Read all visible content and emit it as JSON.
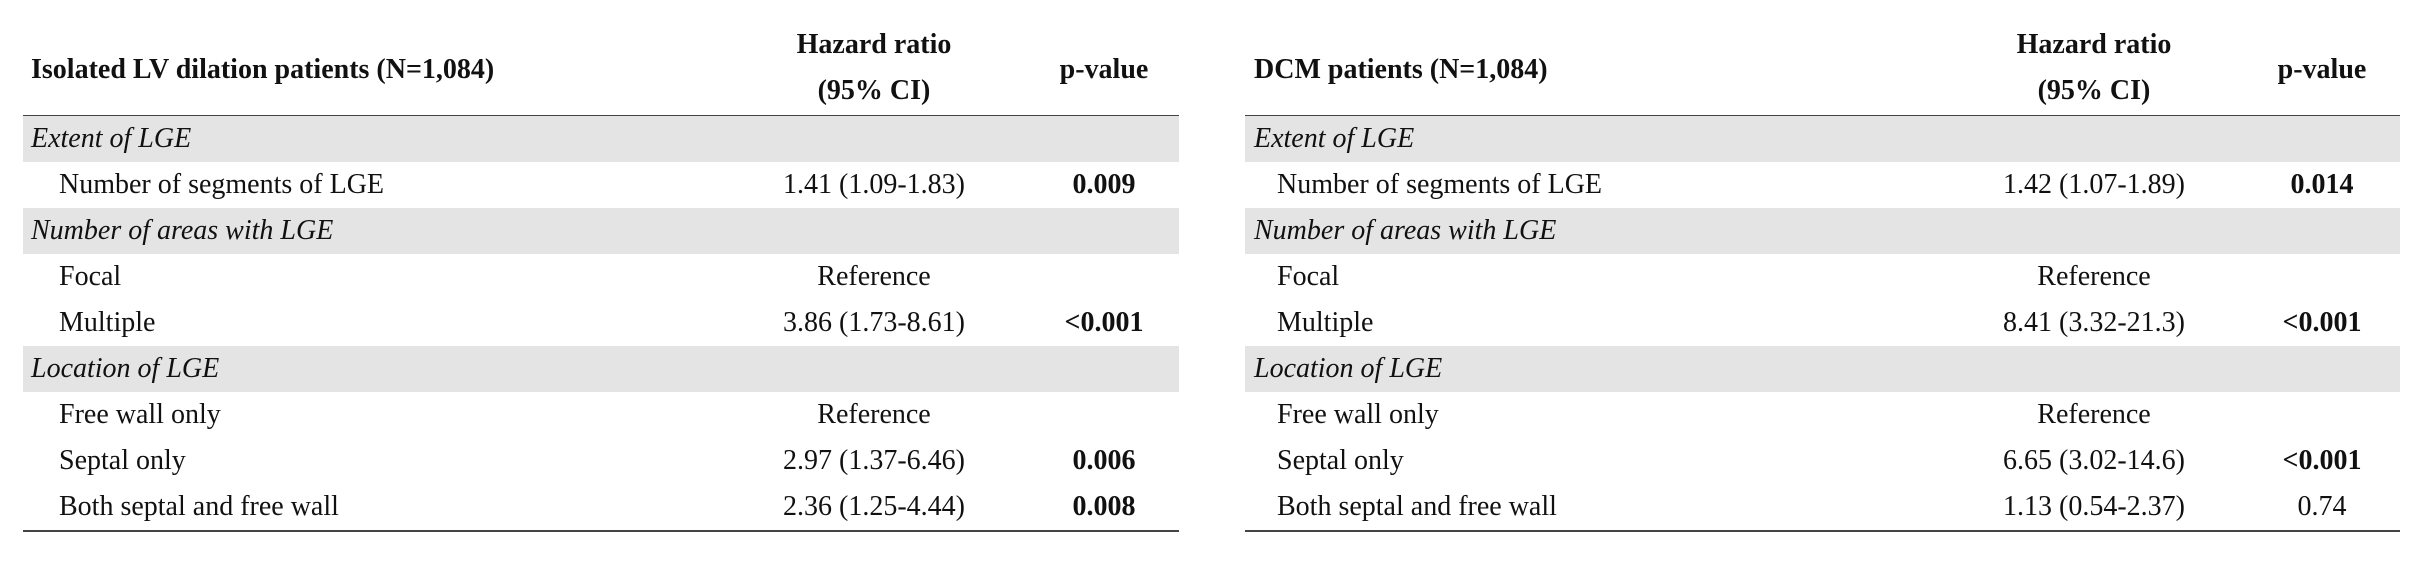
{
  "tables": [
    {
      "title": "Isolated LV dilation patients (N=1,084)",
      "hr_header": [
        "Hazard ratio",
        "(95% CI)"
      ],
      "p_header": "p-value",
      "groups": [
        {
          "heading": "Extent of LGE",
          "rows": [
            {
              "label": "Number of segments of LGE",
              "hr": "1.41 (1.09-1.83)",
              "p": "0.009",
              "p_bold": true
            }
          ]
        },
        {
          "heading": "Number of areas with LGE",
          "rows": [
            {
              "label": "Focal",
              "hr": "Reference"
            },
            {
              "label": "Multiple",
              "hr": "3.86 (1.73-8.61)",
              "p": "<0.001",
              "p_bold": true
            }
          ]
        },
        {
          "heading": "Location of LGE",
          "rows": [
            {
              "label": "Free wall only",
              "hr": "Reference"
            },
            {
              "label": "Septal only",
              "hr": "2.97 (1.37-6.46)",
              "p": "0.006",
              "p_bold": true
            },
            {
              "label": "Both septal and free wall",
              "hr": "2.36 (1.25-4.44)",
              "p": "0.008",
              "p_bold": true
            }
          ]
        }
      ]
    },
    {
      "title": "DCM patients (N=1,084)",
      "hr_header": [
        "Hazard ratio",
        "(95% CI)"
      ],
      "p_header": "p-value",
      "groups": [
        {
          "heading": "Extent of LGE",
          "rows": [
            {
              "label": "Number of segments of LGE",
              "hr": "1.42 (1.07-1.89)",
              "p": "0.014",
              "p_bold": true
            }
          ]
        },
        {
          "heading": "Number of areas with LGE",
          "rows": [
            {
              "label": "Focal",
              "hr": "Reference"
            },
            {
              "label": "Multiple",
              "hr": "8.41 (3.32-21.3)",
              "p": "<0.001",
              "p_bold": true
            }
          ]
        },
        {
          "heading": "Location of LGE",
          "rows": [
            {
              "label": "Free wall only",
              "hr": "Reference"
            },
            {
              "label": "Septal only",
              "hr": "6.65 (3.02-14.6)",
              "p": "<0.001",
              "p_bold": true
            },
            {
              "label": "Both septal and free wall",
              "hr": "1.13 (0.54-2.37)",
              "p": "0.74",
              "p_bold": false
            }
          ]
        }
      ]
    }
  ]
}
